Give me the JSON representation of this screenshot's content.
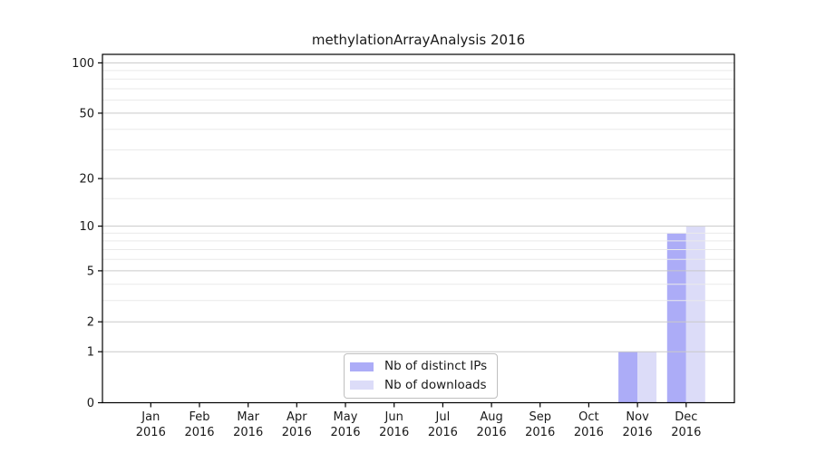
{
  "figure": {
    "title": "methylationArrayAnalysis 2016",
    "background_color": "#ffffff",
    "text_color": "#1a1a1a"
  },
  "legend": {
    "items": [
      {
        "label": "Nb of distinct IPs",
        "color": "#acacf7"
      },
      {
        "label": "Nb of downloads",
        "color": "#dcdcf8"
      }
    ]
  },
  "chart_data": {
    "type": "bar",
    "title": "methylationArrayAnalysis 2016",
    "categories": [
      "Jan 2016",
      "Feb 2016",
      "Mar 2016",
      "Apr 2016",
      "May 2016",
      "Jun 2016",
      "Jul 2016",
      "Aug 2016",
      "Sep 2016",
      "Oct 2016",
      "Nov 2016",
      "Dec 2016"
    ],
    "x_tick_months": [
      "Jan",
      "Feb",
      "Mar",
      "Apr",
      "May",
      "Jun",
      "Jul",
      "Aug",
      "Sep",
      "Oct",
      "Nov",
      "Dec"
    ],
    "x_tick_year": "2016",
    "series": [
      {
        "name": "Nb of distinct IPs",
        "color": "#acacf7",
        "values": [
          0,
          0,
          0,
          0,
          0,
          0,
          0,
          0,
          0,
          0,
          1,
          9
        ]
      },
      {
        "name": "Nb of downloads",
        "color": "#dcdcf8",
        "values": [
          0,
          0,
          0,
          0,
          0,
          0,
          0,
          0,
          0,
          0,
          1,
          10
        ]
      }
    ],
    "xlabel": "",
    "ylabel": "",
    "ylim": [
      0,
      100
    ],
    "y_scale": "log1p",
    "y_tick_values": [
      0,
      1,
      2,
      5,
      10,
      20,
      50,
      100
    ],
    "y_tick_labels": [
      "0",
      "1",
      "2",
      "5",
      "10",
      "20",
      "50",
      "100"
    ],
    "y_minor_tick_values": [
      3,
      4,
      6,
      7,
      8,
      9,
      15,
      30,
      40,
      60,
      70,
      80,
      90
    ],
    "grid": "horizontal, drawn over bars",
    "legend_position": "lower center",
    "axis_color": "#000000",
    "grid_major_color": "#c9c9c9",
    "grid_minor_color": "#eaeaea"
  }
}
